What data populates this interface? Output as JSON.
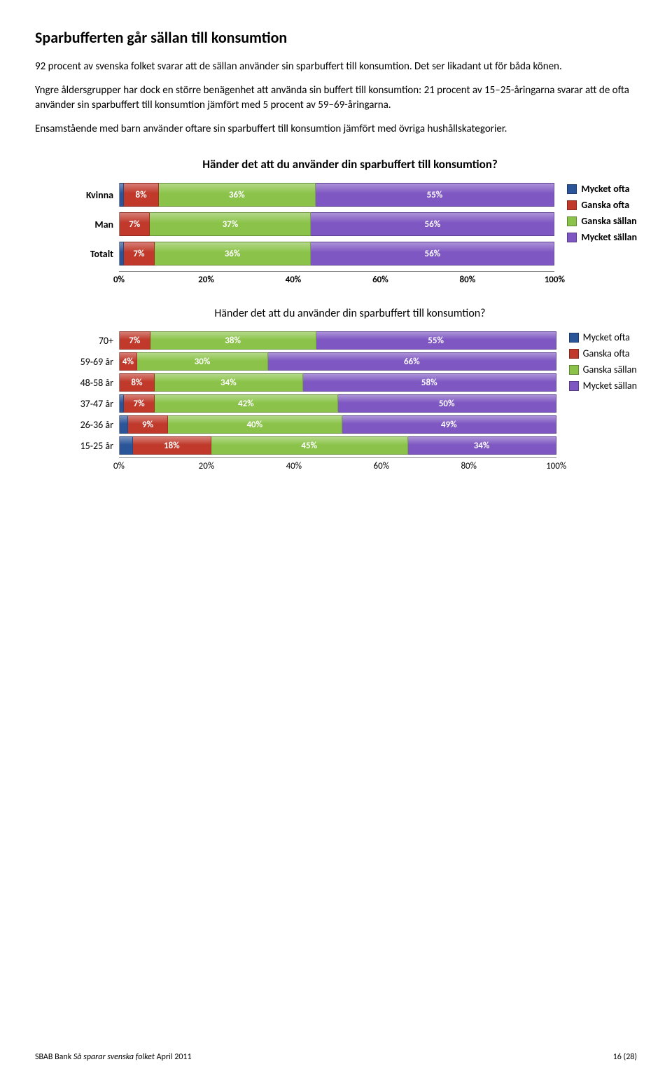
{
  "colors": {
    "mycket_ofta": "#2a5599",
    "ganska_ofta": "#c0392b",
    "ganska_sallan": "#8bc34a",
    "mycket_sallan": "#7e57c2",
    "grid": "#cccccc",
    "text": "#000000"
  },
  "heading": "Sparbufferten går sällan till konsumtion",
  "para1": "92 procent av svenska folket svarar att de sällan använder sin sparbuffert till konsumtion. Det ser likadant ut för båda könen.",
  "para2": "Yngre åldersgrupper har dock en större benägenhet att använda sin buffert till konsumtion: 21 procent av 15–25-åringarna svarar att de ofta använder sin sparbuffert till konsumtion jämfört med 5 procent av 59–69-åringarna.",
  "para3": "Ensamstående med barn använder oftare sin sparbuffert till konsumtion jämfört med övriga hushållskategorier.",
  "chart1": {
    "title": "Händer det att du använder din sparbuffert till konsumtion?",
    "axis_ticks": [
      "0%",
      "20%",
      "40%",
      "60%",
      "80%",
      "100%"
    ],
    "legend": [
      "Mycket ofta",
      "Ganska ofta",
      "Ganska sällan",
      "Mycket sällan"
    ],
    "rows": [
      {
        "label": "Kvinna",
        "segs": [
          {
            "k": "mycket_ofta",
            "v": 1,
            "t": ""
          },
          {
            "k": "ganska_ofta",
            "v": 8,
            "t": "8%"
          },
          {
            "k": "ganska_sallan",
            "v": 36,
            "t": "36%"
          },
          {
            "k": "mycket_sallan",
            "v": 55,
            "t": "55%"
          }
        ]
      },
      {
        "label": "Man",
        "segs": [
          {
            "k": "mycket_ofta",
            "v": 0,
            "t": ""
          },
          {
            "k": "ganska_ofta",
            "v": 7,
            "t": "7%"
          },
          {
            "k": "ganska_sallan",
            "v": 37,
            "t": "37%"
          },
          {
            "k": "mycket_sallan",
            "v": 56,
            "t": "56%"
          }
        ]
      },
      {
        "label": "Totalt",
        "segs": [
          {
            "k": "mycket_ofta",
            "v": 1,
            "t": ""
          },
          {
            "k": "ganska_ofta",
            "v": 7,
            "t": "7%"
          },
          {
            "k": "ganska_sallan",
            "v": 36,
            "t": "36%"
          },
          {
            "k": "mycket_sallan",
            "v": 56,
            "t": "56%"
          }
        ]
      }
    ]
  },
  "chart2": {
    "title": "Händer det att du använder din sparbuffert till konsumtion?",
    "axis_ticks": [
      "0%",
      "20%",
      "40%",
      "60%",
      "80%",
      "100%"
    ],
    "legend": [
      "Mycket ofta",
      "Ganska ofta",
      "Ganska sällan",
      "Mycket sällan"
    ],
    "rows": [
      {
        "label": "70+",
        "segs": [
          {
            "k": "mycket_ofta",
            "v": 0,
            "t": ""
          },
          {
            "k": "ganska_ofta",
            "v": 7,
            "t": "7%"
          },
          {
            "k": "ganska_sallan",
            "v": 38,
            "t": "38%"
          },
          {
            "k": "mycket_sallan",
            "v": 55,
            "t": "55%"
          }
        ]
      },
      {
        "label": "59-69 år",
        "segs": [
          {
            "k": "mycket_ofta",
            "v": 0,
            "t": ""
          },
          {
            "k": "ganska_ofta",
            "v": 4,
            "t": "4%"
          },
          {
            "k": "ganska_sallan",
            "v": 30,
            "t": "30%"
          },
          {
            "k": "mycket_sallan",
            "v": 66,
            "t": "66%"
          }
        ]
      },
      {
        "label": "48-58 år",
        "segs": [
          {
            "k": "mycket_ofta",
            "v": 0,
            "t": ""
          },
          {
            "k": "ganska_ofta",
            "v": 8,
            "t": "8%"
          },
          {
            "k": "ganska_sallan",
            "v": 34,
            "t": "34%"
          },
          {
            "k": "mycket_sallan",
            "v": 58,
            "t": "58%"
          }
        ]
      },
      {
        "label": "37-47 år",
        "segs": [
          {
            "k": "mycket_ofta",
            "v": 1,
            "t": ""
          },
          {
            "k": "ganska_ofta",
            "v": 7,
            "t": "7%"
          },
          {
            "k": "ganska_sallan",
            "v": 42,
            "t": "42%"
          },
          {
            "k": "mycket_sallan",
            "v": 50,
            "t": "50%"
          }
        ]
      },
      {
        "label": "26-36 år",
        "segs": [
          {
            "k": "mycket_ofta",
            "v": 2,
            "t": ""
          },
          {
            "k": "ganska_ofta",
            "v": 9,
            "t": "9%"
          },
          {
            "k": "ganska_sallan",
            "v": 40,
            "t": "40%"
          },
          {
            "k": "mycket_sallan",
            "v": 49,
            "t": "49%"
          }
        ]
      },
      {
        "label": "15-25 år",
        "segs": [
          {
            "k": "mycket_ofta",
            "v": 3,
            "t": ""
          },
          {
            "k": "ganska_ofta",
            "v": 18,
            "t": "18%"
          },
          {
            "k": "ganska_sallan",
            "v": 45,
            "t": "45%"
          },
          {
            "k": "mycket_sallan",
            "v": 34,
            "t": "34%"
          }
        ]
      }
    ]
  },
  "footer": {
    "left_prefix": "SBAB Bank ",
    "left_italic": "Så sparar svenska folket",
    "left_suffix": " April 2011",
    "right": "16 (28)"
  }
}
